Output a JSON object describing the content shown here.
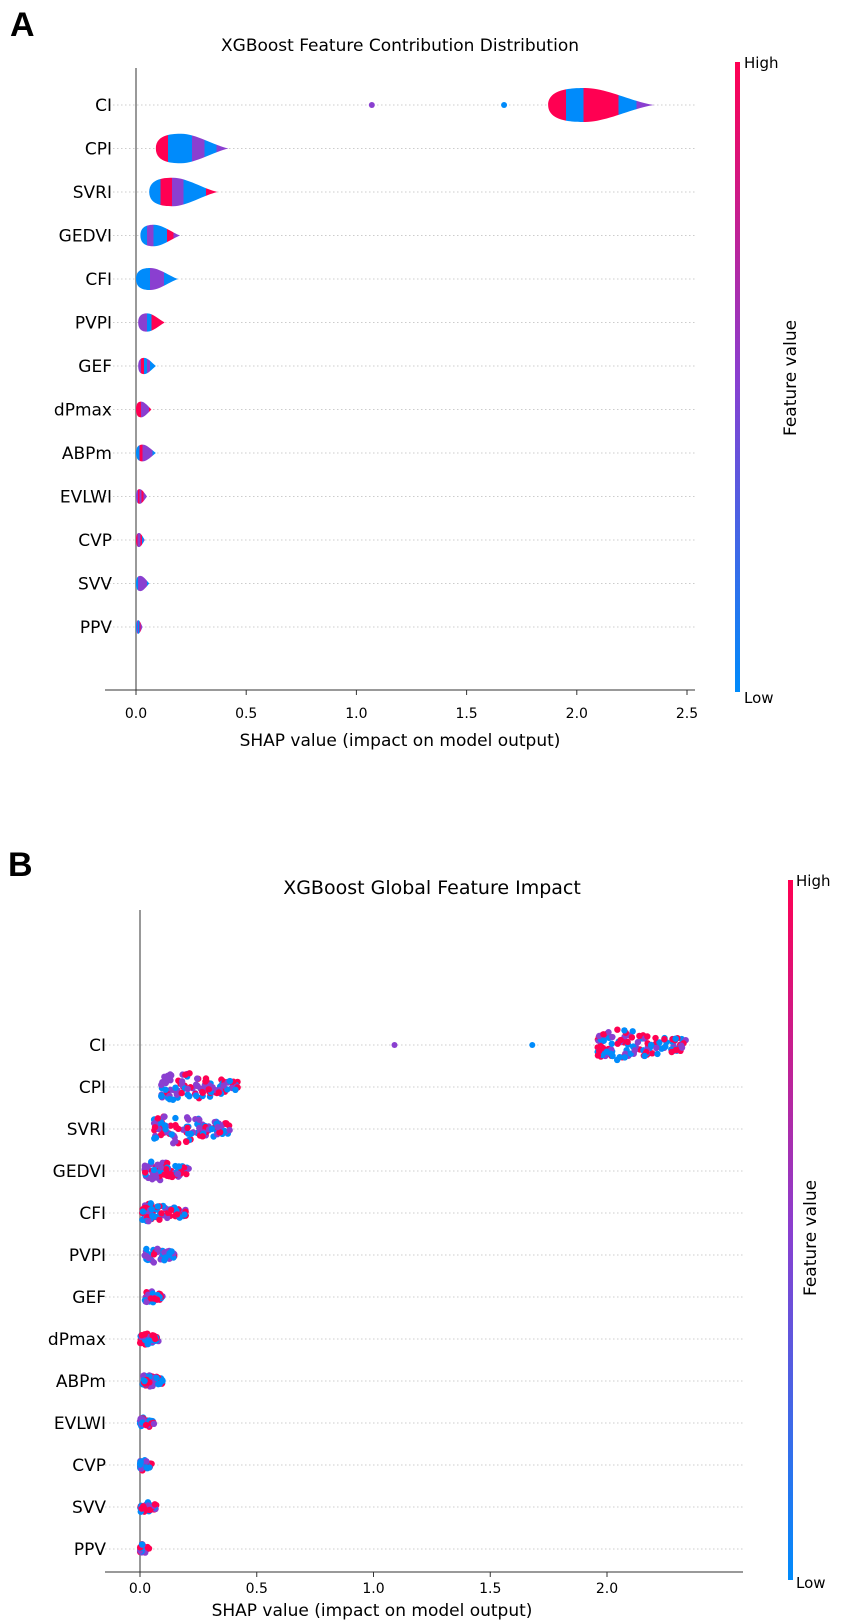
{
  "chart_data": [
    {
      "panel": "A",
      "type": "violin",
      "title": "XGBoost Feature Contribution Distribution",
      "xlabel": "SHAP value (impact on model output)",
      "xlim": [
        -0.13,
        2.55
      ],
      "xticks": [
        "0.0",
        "0.5",
        "1.0",
        "1.5",
        "2.0",
        "2.5"
      ],
      "xtick_values": [
        0,
        0.5,
        1,
        1.5,
        2,
        2.5
      ],
      "colorbar": {
        "label": "Feature value",
        "high": "High",
        "low": "Low"
      },
      "features": [
        "CI",
        "CPI",
        "SVRI",
        "GEDVI",
        "CFI",
        "PVPI",
        "GEF",
        "dPmax",
        "ABPm",
        "EVLWI",
        "CVP",
        "SVV",
        "PPV"
      ],
      "ranges": [
        [
          1.87,
          2.35
        ],
        [
          0.09,
          0.42
        ],
        [
          0.06,
          0.37
        ],
        [
          0.02,
          0.2
        ],
        [
          0.0,
          0.19
        ],
        [
          0.01,
          0.13
        ],
        [
          0.01,
          0.09
        ],
        [
          0.0,
          0.07
        ],
        [
          0.0,
          0.09
        ],
        [
          0.0,
          0.05
        ],
        [
          0.0,
          0.04
        ],
        [
          0.0,
          0.06
        ],
        [
          0.0,
          0.03
        ]
      ],
      "outliers": {
        "CI": [
          1.07,
          1.67
        ]
      }
    },
    {
      "panel": "B",
      "type": "scatter",
      "title": "XGBoost Global Feature Impact",
      "xlabel": "SHAP value (impact on model output)",
      "xlim": [
        -0.13,
        2.4
      ],
      "xticks": [
        "0.0",
        "0.5",
        "1.0",
        "1.5",
        "2.0"
      ],
      "xtick_values": [
        0,
        0.5,
        1,
        1.5,
        2
      ],
      "colorbar": {
        "label": "Feature value",
        "high": "High",
        "low": "Low"
      },
      "features": [
        "CI",
        "CPI",
        "SVRI",
        "GEDVI",
        "CFI",
        "PVPI",
        "GEF",
        "dPmax",
        "ABPm",
        "EVLWI",
        "CVP",
        "SVV",
        "PPV"
      ],
      "ranges": [
        [
          1.96,
          2.34
        ],
        [
          0.09,
          0.42
        ],
        [
          0.06,
          0.39
        ],
        [
          0.02,
          0.21
        ],
        [
          0.01,
          0.2
        ],
        [
          0.02,
          0.15
        ],
        [
          0.02,
          0.1
        ],
        [
          0.0,
          0.08
        ],
        [
          0.01,
          0.1
        ],
        [
          0.0,
          0.06
        ],
        [
          0.0,
          0.05
        ],
        [
          0.0,
          0.07
        ],
        [
          0.0,
          0.04
        ]
      ],
      "outliers": {
        "CI": [
          1.09,
          1.68
        ]
      }
    }
  ],
  "colors": {
    "high": "#ff0052",
    "mid": "#8a3fd0",
    "low": "#008bfb",
    "axis": "#999999",
    "grid": "#cccccc"
  }
}
